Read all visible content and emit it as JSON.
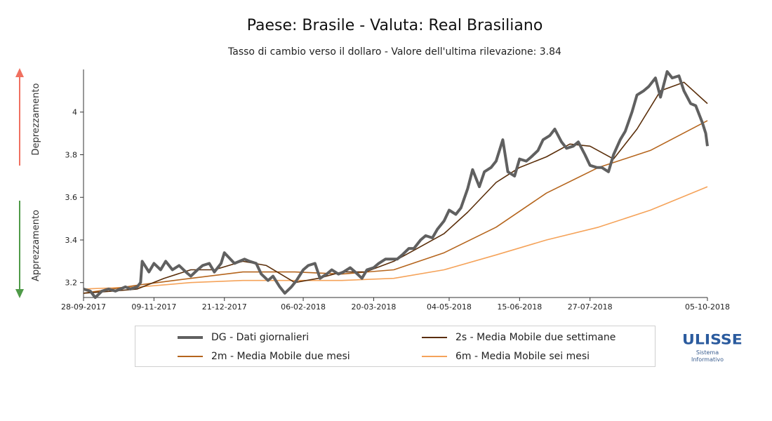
{
  "header": {
    "title": "Paese: Brasile - Valuta: Real Brasiliano",
    "subtitle": "Tasso di cambio verso il dollaro - Valore dell'ultima rilevazione: 3.84"
  },
  "side_labels": {
    "top": "Deprezzamento",
    "bottom": "Apprezzamento",
    "top_color": "#f07060",
    "bottom_color": "#4f9a48"
  },
  "legend": {
    "items": [
      {
        "label": "DG - Dati giornalieri",
        "color": "#606060"
      },
      {
        "label": "2s - Media Mobile due settimane",
        "color": "#5a2e0a"
      },
      {
        "label": "2m - Media Mobile due mesi",
        "color": "#b5651d"
      },
      {
        "label": "6m - Media Mobile sei mesi",
        "color": "#f5a35a"
      }
    ]
  },
  "logo": {
    "main": "ULISSE",
    "sub1": "Sistema",
    "sub2": "Informativo",
    "color": "#2b5b9e"
  },
  "chart_data": {
    "type": "line",
    "x_ticks": [
      "28-09-2017",
      "09-11-2017",
      "21-12-2017",
      "06-02-2018",
      "20-03-2018",
      "04-05-2018",
      "15-06-2018",
      "27-07-2018",
      "05-10-2018"
    ],
    "y_ticks": [
      3.2,
      3.4,
      3.6,
      3.8,
      4.0
    ],
    "y_tick_labels": [
      "3.2",
      "3.4",
      "3.6",
      "3.8",
      "4"
    ],
    "ylim": [
      3.13,
      4.2
    ],
    "x_range": [
      "2017-09-28",
      "2018-10-05"
    ],
    "series": [
      {
        "name": "DG - Dati giornalieri",
        "color": "#606060",
        "points": [
          [
            "2017-09-28",
            3.17
          ],
          [
            "2017-10-02",
            3.16
          ],
          [
            "2017-10-05",
            3.13
          ],
          [
            "2017-10-09",
            3.16
          ],
          [
            "2017-10-13",
            3.17
          ],
          [
            "2017-10-17",
            3.16
          ],
          [
            "2017-10-20",
            3.17
          ],
          [
            "2017-10-23",
            3.18
          ],
          [
            "2017-10-26",
            3.17
          ],
          [
            "2017-10-30",
            3.18
          ],
          [
            "2017-11-01",
            3.2
          ],
          [
            "2017-11-02",
            3.3
          ],
          [
            "2017-11-06",
            3.25
          ],
          [
            "2017-11-09",
            3.29
          ],
          [
            "2017-11-13",
            3.26
          ],
          [
            "2017-11-16",
            3.3
          ],
          [
            "2017-11-20",
            3.26
          ],
          [
            "2017-11-24",
            3.28
          ],
          [
            "2017-11-28",
            3.25
          ],
          [
            "2017-12-01",
            3.23
          ],
          [
            "2017-12-05",
            3.26
          ],
          [
            "2017-12-08",
            3.28
          ],
          [
            "2017-12-12",
            3.29
          ],
          [
            "2017-12-15",
            3.25
          ],
          [
            "2017-12-19",
            3.29
          ],
          [
            "2017-12-21",
            3.34
          ],
          [
            "2017-12-27",
            3.29
          ],
          [
            "2018-01-02",
            3.31
          ],
          [
            "2018-01-05",
            3.3
          ],
          [
            "2018-01-09",
            3.29
          ],
          [
            "2018-01-12",
            3.24
          ],
          [
            "2018-01-16",
            3.21
          ],
          [
            "2018-01-19",
            3.23
          ],
          [
            "2018-01-23",
            3.18
          ],
          [
            "2018-01-26",
            3.15
          ],
          [
            "2018-01-30",
            3.18
          ],
          [
            "2018-02-02",
            3.21
          ],
          [
            "2018-02-06",
            3.26
          ],
          [
            "2018-02-09",
            3.28
          ],
          [
            "2018-02-13",
            3.29
          ],
          [
            "2018-02-16",
            3.22
          ],
          [
            "2018-02-20",
            3.24
          ],
          [
            "2018-02-23",
            3.26
          ],
          [
            "2018-02-27",
            3.24
          ],
          [
            "2018-03-02",
            3.25
          ],
          [
            "2018-03-06",
            3.27
          ],
          [
            "2018-03-09",
            3.25
          ],
          [
            "2018-03-13",
            3.22
          ],
          [
            "2018-03-16",
            3.26
          ],
          [
            "2018-03-20",
            3.27
          ],
          [
            "2018-03-23",
            3.29
          ],
          [
            "2018-03-27",
            3.31
          ],
          [
            "2018-03-30",
            3.31
          ],
          [
            "2018-04-03",
            3.31
          ],
          [
            "2018-04-06",
            3.33
          ],
          [
            "2018-04-10",
            3.36
          ],
          [
            "2018-04-13",
            3.36
          ],
          [
            "2018-04-17",
            3.4
          ],
          [
            "2018-04-20",
            3.42
          ],
          [
            "2018-04-24",
            3.41
          ],
          [
            "2018-04-27",
            3.45
          ],
          [
            "2018-05-01",
            3.49
          ],
          [
            "2018-05-04",
            3.54
          ],
          [
            "2018-05-08",
            3.52
          ],
          [
            "2018-05-11",
            3.55
          ],
          [
            "2018-05-15",
            3.64
          ],
          [
            "2018-05-18",
            3.73
          ],
          [
            "2018-05-22",
            3.65
          ],
          [
            "2018-05-25",
            3.72
          ],
          [
            "2018-05-29",
            3.74
          ],
          [
            "2018-06-01",
            3.77
          ],
          [
            "2018-06-05",
            3.87
          ],
          [
            "2018-06-08",
            3.72
          ],
          [
            "2018-06-12",
            3.7
          ],
          [
            "2018-06-15",
            3.78
          ],
          [
            "2018-06-19",
            3.77
          ],
          [
            "2018-06-22",
            3.79
          ],
          [
            "2018-06-26",
            3.82
          ],
          [
            "2018-06-29",
            3.87
          ],
          [
            "2018-07-03",
            3.89
          ],
          [
            "2018-07-06",
            3.92
          ],
          [
            "2018-07-10",
            3.86
          ],
          [
            "2018-07-13",
            3.83
          ],
          [
            "2018-07-17",
            3.84
          ],
          [
            "2018-07-20",
            3.86
          ],
          [
            "2018-07-24",
            3.8
          ],
          [
            "2018-07-27",
            3.75
          ],
          [
            "2018-07-31",
            3.74
          ],
          [
            "2018-08-03",
            3.74
          ],
          [
            "2018-08-07",
            3.72
          ],
          [
            "2018-08-10",
            3.8
          ],
          [
            "2018-08-14",
            3.87
          ],
          [
            "2018-08-17",
            3.91
          ],
          [
            "2018-08-21",
            4.0
          ],
          [
            "2018-08-24",
            4.08
          ],
          [
            "2018-08-28",
            4.1
          ],
          [
            "2018-08-31",
            4.12
          ],
          [
            "2018-09-04",
            4.16
          ],
          [
            "2018-09-07",
            4.07
          ],
          [
            "2018-09-11",
            4.19
          ],
          [
            "2018-09-14",
            4.16
          ],
          [
            "2018-09-18",
            4.17
          ],
          [
            "2018-09-21",
            4.1
          ],
          [
            "2018-09-25",
            4.04
          ],
          [
            "2018-09-28",
            4.03
          ],
          [
            "2018-10-02",
            3.95
          ],
          [
            "2018-10-04",
            3.9
          ],
          [
            "2018-10-05",
            3.84
          ]
        ]
      },
      {
        "name": "2s - Media Mobile due settimane",
        "color": "#5a2e0a",
        "points": [
          [
            "2017-09-28",
            3.15
          ],
          [
            "2017-10-15",
            3.16
          ],
          [
            "2017-10-30",
            3.17
          ],
          [
            "2017-11-15",
            3.22
          ],
          [
            "2017-12-01",
            3.26
          ],
          [
            "2017-12-15",
            3.26
          ],
          [
            "2018-01-01",
            3.3
          ],
          [
            "2018-01-15",
            3.28
          ],
          [
            "2018-02-01",
            3.2
          ],
          [
            "2018-02-15",
            3.22
          ],
          [
            "2018-03-01",
            3.25
          ],
          [
            "2018-03-15",
            3.25
          ],
          [
            "2018-04-01",
            3.3
          ],
          [
            "2018-04-15",
            3.36
          ],
          [
            "2018-05-01",
            3.43
          ],
          [
            "2018-05-15",
            3.53
          ],
          [
            "2018-06-01",
            3.67
          ],
          [
            "2018-06-15",
            3.74
          ],
          [
            "2018-07-01",
            3.79
          ],
          [
            "2018-07-15",
            3.85
          ],
          [
            "2018-07-27",
            3.84
          ],
          [
            "2018-08-10",
            3.78
          ],
          [
            "2018-08-24",
            3.92
          ],
          [
            "2018-09-07",
            4.1
          ],
          [
            "2018-09-21",
            4.14
          ],
          [
            "2018-10-05",
            4.04
          ]
        ]
      },
      {
        "name": "2m - Media Mobile due mesi",
        "color": "#b5651d",
        "points": [
          [
            "2017-09-28",
            3.15
          ],
          [
            "2017-11-01",
            3.19
          ],
          [
            "2017-12-01",
            3.22
          ],
          [
            "2018-01-01",
            3.25
          ],
          [
            "2018-02-01",
            3.25
          ],
          [
            "2018-03-01",
            3.24
          ],
          [
            "2018-04-01",
            3.26
          ],
          [
            "2018-05-01",
            3.34
          ],
          [
            "2018-06-01",
            3.46
          ],
          [
            "2018-07-01",
            3.62
          ],
          [
            "2018-08-01",
            3.74
          ],
          [
            "2018-09-01",
            3.82
          ],
          [
            "2018-10-05",
            3.96
          ]
        ]
      },
      {
        "name": "6m - Media Mobile sei mesi",
        "color": "#f5a35a",
        "points": [
          [
            "2017-09-28",
            3.17
          ],
          [
            "2017-11-01",
            3.18
          ],
          [
            "2017-12-01",
            3.2
          ],
          [
            "2018-01-01",
            3.21
          ],
          [
            "2018-02-01",
            3.21
          ],
          [
            "2018-03-01",
            3.21
          ],
          [
            "2018-04-01",
            3.22
          ],
          [
            "2018-05-01",
            3.26
          ],
          [
            "2018-06-01",
            3.33
          ],
          [
            "2018-07-01",
            3.4
          ],
          [
            "2018-08-01",
            3.46
          ],
          [
            "2018-09-01",
            3.54
          ],
          [
            "2018-10-05",
            3.65
          ]
        ]
      }
    ]
  }
}
